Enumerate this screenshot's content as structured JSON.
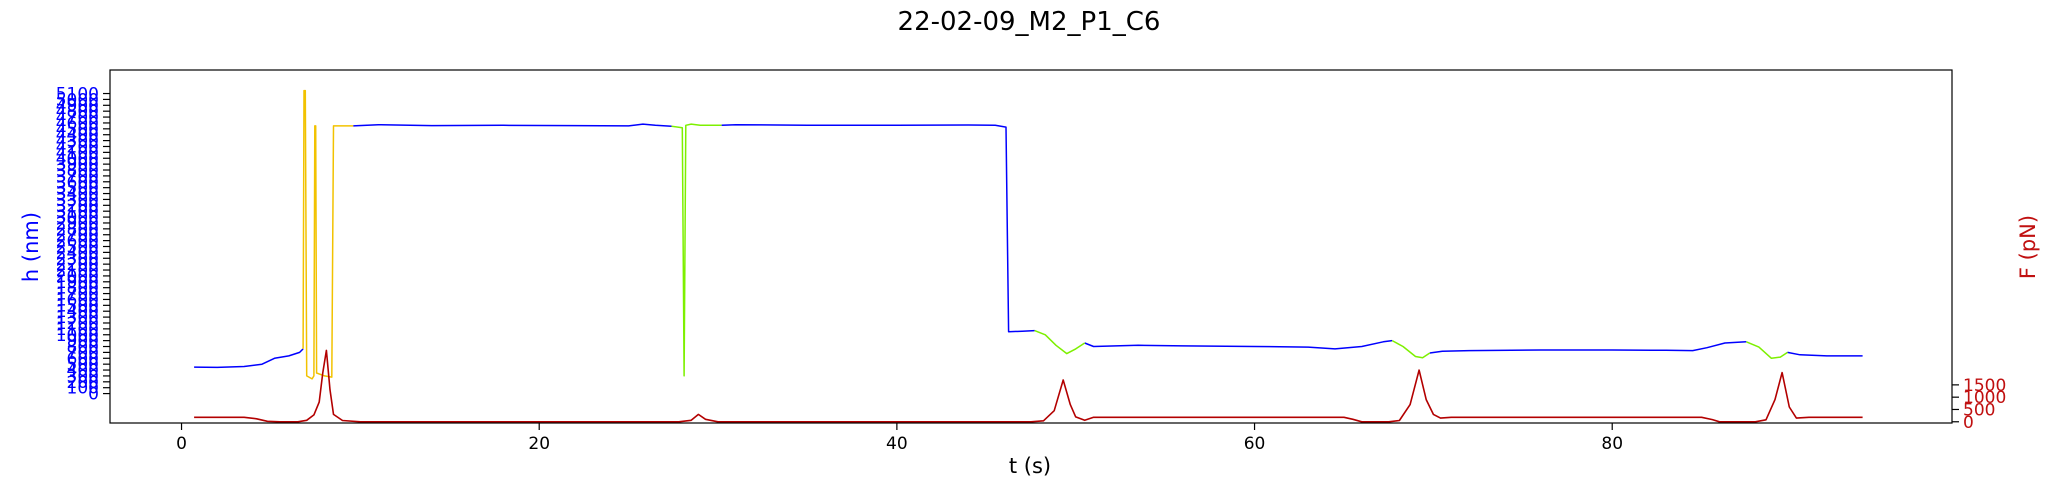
{
  "chart_data": {
    "type": "line",
    "title": "22-02-09_M2_P1_C6",
    "xlabel": "t (s)",
    "ylabel_left": "h (nm)",
    "ylabel_right": "F (pN)",
    "colors": {
      "h_nm": "#0000ff",
      "h_segment_yellow": "#f2c200",
      "h_segment_green": "#7df000",
      "force": "#b30000",
      "left_axis_text": "#0000ff",
      "right_axis_text": "#c01010"
    },
    "xlim": [
      -4,
      99
    ],
    "ylim_left": [
      -500,
      5500
    ],
    "ylim_right": [
      -50,
      14300
    ],
    "x_ticks": [
      0,
      20,
      40,
      60,
      80
    ],
    "left_ticks": [
      0,
      100,
      200,
      300,
      400,
      500,
      600,
      700,
      800,
      900,
      1000,
      1100,
      1200,
      1300,
      1400,
      1500,
      1600,
      1700,
      1800,
      1900,
      2000,
      2100,
      2200,
      2300,
      2400,
      2500,
      2600,
      2700,
      2800,
      2900,
      3000,
      3100,
      3200,
      3300,
      3400,
      3500,
      3600,
      3700,
      3800,
      3900,
      4000,
      4100,
      4200,
      4300,
      4400,
      4500,
      4600,
      4700,
      4800,
      4900,
      5000,
      5100
    ],
    "right_ticks": [
      0,
      500,
      1000,
      1500
    ],
    "grid": false,
    "series": [
      {
        "key": "h_main",
        "axis": "left",
        "color_key": "h_nm",
        "segments": [
          [
            [
              0.7,
              450
            ],
            [
              2.0,
              445
            ],
            [
              3.5,
              460
            ],
            [
              4.5,
              500
            ],
            [
              5.2,
              600
            ],
            [
              6.0,
              640
            ],
            [
              6.6,
              700
            ],
            [
              6.8,
              760
            ]
          ],
          [
            [
              9.6,
              4550
            ],
            [
              11,
              4570
            ],
            [
              14,
              4555
            ],
            [
              18,
              4560
            ],
            [
              22,
              4555
            ],
            [
              25,
              4550
            ],
            [
              25.8,
              4580
            ],
            [
              26.5,
              4560
            ],
            [
              27.4,
              4545
            ]
          ],
          [
            [
              30.2,
              4560
            ],
            [
              31,
              4570
            ],
            [
              35,
              4560
            ],
            [
              40,
              4560
            ],
            [
              44,
              4565
            ],
            [
              45.5,
              4560
            ],
            [
              46.1,
              4530
            ],
            [
              46.25,
              1050
            ],
            [
              47.0,
              1060
            ],
            [
              47.7,
              1070
            ]
          ],
          [
            [
              50.5,
              860
            ],
            [
              51,
              800
            ],
            [
              53.5,
              820
            ],
            [
              56,
              810
            ],
            [
              60,
              800
            ],
            [
              63,
              790
            ],
            [
              64.5,
              760
            ],
            [
              66,
              800
            ],
            [
              67.2,
              880
            ],
            [
              67.7,
              900
            ]
          ],
          [
            [
              69.8,
              690
            ],
            [
              70.5,
              720
            ],
            [
              72,
              730
            ],
            [
              76,
              740
            ],
            [
              80,
              740
            ],
            [
              83,
              735
            ],
            [
              84.5,
              730
            ],
            [
              85.3,
              780
            ],
            [
              86.3,
              860
            ],
            [
              87.5,
              880
            ]
          ],
          [
            [
              89.8,
              700
            ],
            [
              90.5,
              660
            ],
            [
              92,
              640
            ],
            [
              94,
              640
            ]
          ]
        ]
      },
      {
        "key": "h_yellow",
        "axis": "left",
        "color_key": "h_segment_yellow",
        "segments": [
          [
            [
              6.8,
              760
            ],
            [
              6.85,
              5150
            ],
            [
              6.92,
              5150
            ],
            [
              7.0,
              300
            ],
            [
              7.3,
              250
            ],
            [
              7.4,
              300
            ],
            [
              7.45,
              4550
            ],
            [
              7.5,
              4550
            ],
            [
              7.55,
              350
            ],
            [
              8.0,
              300
            ],
            [
              8.4,
              280
            ],
            [
              8.5,
              4550
            ],
            [
              9.6,
              4550
            ]
          ]
        ]
      },
      {
        "key": "h_green",
        "axis": "left",
        "color_key": "h_segment_green",
        "segments": [
          [
            [
              27.4,
              4545
            ],
            [
              28.0,
              4520
            ],
            [
              28.1,
              300
            ],
            [
              28.2,
              4560
            ],
            [
              28.5,
              4580
            ],
            [
              29.0,
              4560
            ],
            [
              30.2,
              4560
            ]
          ],
          [
            [
              47.7,
              1070
            ],
            [
              48.3,
              1000
            ],
            [
              48.9,
              820
            ],
            [
              49.5,
              680
            ],
            [
              50.0,
              760
            ],
            [
              50.5,
              860
            ]
          ],
          [
            [
              67.7,
              900
            ],
            [
              68.3,
              800
            ],
            [
              69.0,
              630
            ],
            [
              69.4,
              610
            ],
            [
              69.8,
              690
            ]
          ],
          [
            [
              87.5,
              880
            ],
            [
              88.2,
              790
            ],
            [
              88.9,
              600
            ],
            [
              89.4,
              620
            ],
            [
              89.8,
              700
            ]
          ]
        ]
      },
      {
        "key": "force",
        "axis": "right",
        "color_key": "force",
        "segments": [
          [
            [
              0.7,
              180
            ],
            [
              2.0,
              180
            ],
            [
              3.5,
              180
            ],
            [
              4.2,
              120
            ],
            [
              4.8,
              20
            ],
            [
              5.5,
              0
            ],
            [
              6.5,
              0
            ],
            [
              7.0,
              60
            ],
            [
              7.4,
              280
            ],
            [
              7.7,
              800
            ],
            [
              7.9,
              2000
            ],
            [
              8.1,
              2900
            ],
            [
              8.3,
              1300
            ],
            [
              8.5,
              300
            ],
            [
              9.0,
              50
            ],
            [
              10,
              0
            ],
            [
              20,
              0
            ],
            [
              26,
              0
            ],
            [
              27.8,
              0
            ],
            [
              28.5,
              60
            ],
            [
              28.9,
              300
            ],
            [
              29.3,
              100
            ],
            [
              30,
              0
            ],
            [
              40,
              0
            ],
            [
              46,
              0
            ],
            [
              47.5,
              0
            ],
            [
              48.2,
              40
            ],
            [
              48.8,
              450
            ],
            [
              49.3,
              1700
            ],
            [
              49.7,
              700
            ],
            [
              50.0,
              200
            ],
            [
              50.5,
              60
            ],
            [
              51,
              180
            ],
            [
              55,
              180
            ],
            [
              60,
              180
            ],
            [
              65,
              180
            ],
            [
              65.5,
              100
            ],
            [
              66,
              0
            ],
            [
              67.5,
              0
            ],
            [
              68.1,
              50
            ],
            [
              68.7,
              700
            ],
            [
              69.2,
              2100
            ],
            [
              69.6,
              900
            ],
            [
              70.0,
              300
            ],
            [
              70.4,
              150
            ],
            [
              71,
              180
            ],
            [
              75,
              180
            ],
            [
              80,
              180
            ],
            [
              85,
              180
            ],
            [
              85.6,
              90
            ],
            [
              86,
              0
            ],
            [
              88.0,
              0
            ],
            [
              88.6,
              80
            ],
            [
              89.1,
              900
            ],
            [
              89.5,
              2000
            ],
            [
              89.9,
              600
            ],
            [
              90.3,
              150
            ],
            [
              91,
              180
            ],
            [
              94,
              180
            ]
          ]
        ]
      }
    ]
  }
}
